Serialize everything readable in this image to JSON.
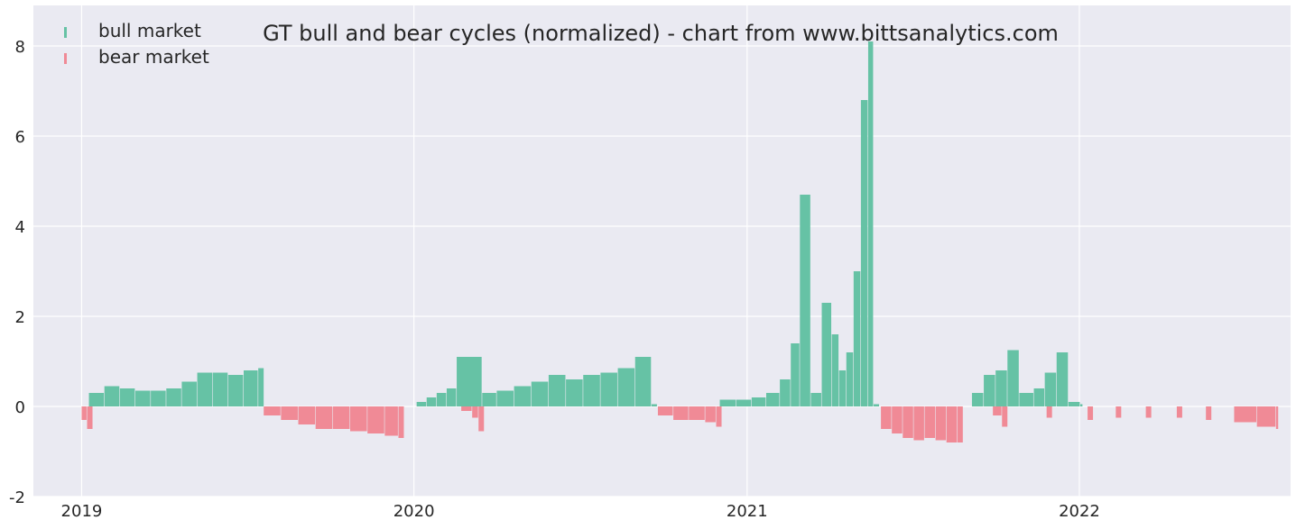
{
  "chart_data": {
    "type": "bar",
    "title": "GT bull and bear cycles (normalized)  - chart from www.bittsanalytics.com",
    "xlabel": "",
    "ylabel": "",
    "xlim": [
      "2018-11-09",
      "2022-08-21"
    ],
    "ylim": [
      -2,
      8.9
    ],
    "xticks": [
      {
        "date": "2019-01-01",
        "label": "2019"
      },
      {
        "date": "2020-01-01",
        "label": "2020"
      },
      {
        "date": "2021-01-01",
        "label": "2021"
      },
      {
        "date": "2022-01-01",
        "label": "2022"
      }
    ],
    "yticks": [
      -2,
      0,
      2,
      4,
      6,
      8
    ],
    "grid": true,
    "legend_position": "top-left",
    "colors": {
      "plot_background": "#eaeaf2",
      "grid": "#ffffff",
      "bull": "#66c2a5",
      "bear": "#f08a96"
    },
    "series": [
      {
        "name": "bull market",
        "color": "#66c2a5",
        "x": [
          "2019-01-09",
          "2019-01-26",
          "2019-02-12",
          "2019-03-01",
          "2019-03-18",
          "2019-04-04",
          "2019-04-21",
          "2019-05-08",
          "2019-05-25",
          "2019-06-11",
          "2019-06-28",
          "2019-07-14",
          "2020-01-04",
          "2020-01-15",
          "2020-01-26",
          "2020-02-06",
          "2020-02-17",
          "2020-03-16",
          "2020-04-01",
          "2020-04-20",
          "2020-05-09",
          "2020-05-28",
          "2020-06-16",
          "2020-07-05",
          "2020-07-24",
          "2020-08-12",
          "2020-08-31",
          "2020-09-18",
          "2020-12-02",
          "2020-12-20",
          "2021-01-06",
          "2021-01-22",
          "2021-02-06",
          "2021-02-18",
          "2021-02-28",
          "2021-03-12",
          "2021-03-24",
          "2021-04-04",
          "2021-04-12",
          "2021-04-20",
          "2021-04-28",
          "2021-05-06",
          "2021-05-14",
          "2021-05-20",
          "2021-09-05",
          "2021-09-18",
          "2021-10-01",
          "2021-10-14",
          "2021-10-27",
          "2021-11-12",
          "2021-11-24",
          "2021-12-07",
          "2021-12-20",
          "2022-01-02"
        ],
        "values": [
          0.3,
          0.45,
          0.4,
          0.35,
          0.35,
          0.4,
          0.55,
          0.75,
          0.75,
          0.7,
          0.8,
          0.85,
          0.1,
          0.2,
          0.3,
          0.4,
          1.1,
          0.3,
          0.35,
          0.45,
          0.55,
          0.7,
          0.6,
          0.7,
          0.75,
          0.85,
          1.1,
          0.05,
          0.15,
          0.15,
          0.2,
          0.3,
          0.6,
          1.4,
          4.7,
          0.3,
          2.3,
          1.6,
          0.8,
          1.2,
          3.0,
          6.8,
          8.1,
          0.05,
          0.3,
          0.7,
          0.8,
          1.25,
          0.3,
          0.4,
          0.75,
          1.2,
          0.1,
          0.05
        ],
        "note_x_periods": ""
      },
      {
        "name": "bear market",
        "color": "#f08a96",
        "x": [
          "2019-01-01",
          "2019-01-07",
          "2019-07-20",
          "2019-08-08",
          "2019-08-27",
          "2019-09-15",
          "2019-10-04",
          "2019-10-23",
          "2019-11-11",
          "2019-11-30",
          "2019-12-15",
          "2020-02-22",
          "2020-03-05",
          "2020-03-12",
          "2020-09-25",
          "2020-10-12",
          "2020-10-29",
          "2020-11-16",
          "2020-11-28",
          "2021-05-28",
          "2021-06-09",
          "2021-06-21",
          "2021-07-03",
          "2021-07-15",
          "2021-07-27",
          "2021-08-08",
          "2021-08-20",
          "2021-09-28",
          "2021-10-08",
          "2021-11-26",
          "2022-01-10",
          "2022-02-10",
          "2022-03-15",
          "2022-04-18",
          "2022-05-20",
          "2022-06-20",
          "2022-07-15",
          "2022-08-05"
        ],
        "values": [
          -0.3,
          -0.5,
          -0.2,
          -0.3,
          -0.4,
          -0.5,
          -0.5,
          -0.55,
          -0.6,
          -0.65,
          -0.7,
          -0.1,
          -0.25,
          -0.55,
          -0.2,
          -0.3,
          -0.3,
          -0.35,
          -0.45,
          -0.5,
          -0.6,
          -0.7,
          -0.75,
          -0.7,
          -0.75,
          -0.8,
          -0.8,
          -0.2,
          -0.45,
          -0.25,
          -0.3,
          -0.25,
          -0.25,
          -0.25,
          -0.3,
          -0.35,
          -0.45,
          -0.5
        ]
      }
    ]
  }
}
